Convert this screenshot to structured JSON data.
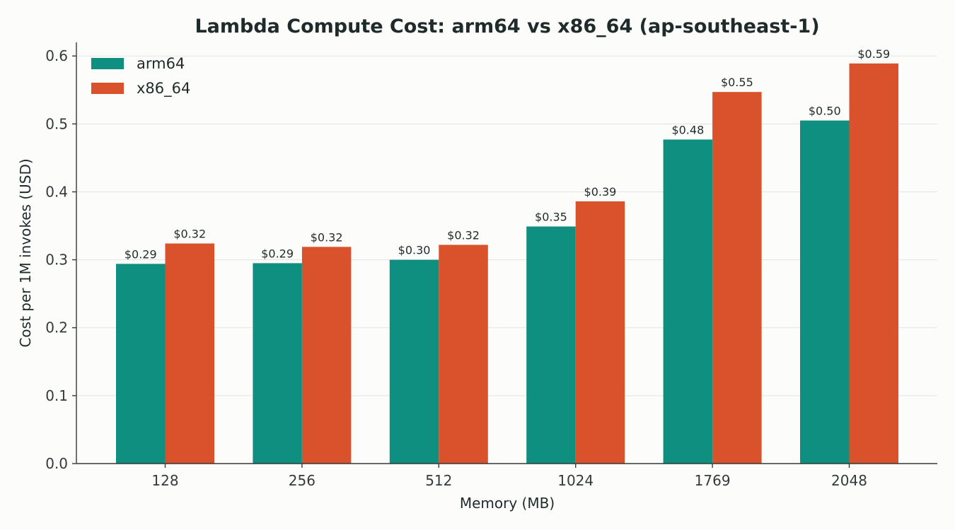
{
  "chart_data": {
    "type": "bar",
    "title": "Lambda Compute Cost: arm64 vs x86_64 (ap-southeast-1)",
    "xlabel": "Memory (MB)",
    "ylabel": "Cost per 1M invokes (USD)",
    "categories": [
      "128",
      "256",
      "512",
      "1024",
      "1769",
      "2048"
    ],
    "series": [
      {
        "name": "arm64",
        "color": "#0f8f7f",
        "values": [
          0.294,
          0.295,
          0.3,
          0.349,
          0.477,
          0.505
        ],
        "labels": [
          "$0.29",
          "$0.29",
          "$0.30",
          "$0.35",
          "$0.48",
          "$0.50"
        ]
      },
      {
        "name": "x86_64",
        "color": "#d9522b",
        "values": [
          0.324,
          0.319,
          0.322,
          0.386,
          0.547,
          0.589
        ],
        "labels": [
          "$0.32",
          "$0.32",
          "$0.32",
          "$0.39",
          "$0.55",
          "$0.59"
        ]
      }
    ],
    "ylim": [
      0,
      0.62
    ],
    "yticks": [
      "0.0",
      "0.1",
      "0.2",
      "0.3",
      "0.4",
      "0.5",
      "0.6"
    ],
    "grid": "horizontal",
    "legend_position": "top-left"
  }
}
